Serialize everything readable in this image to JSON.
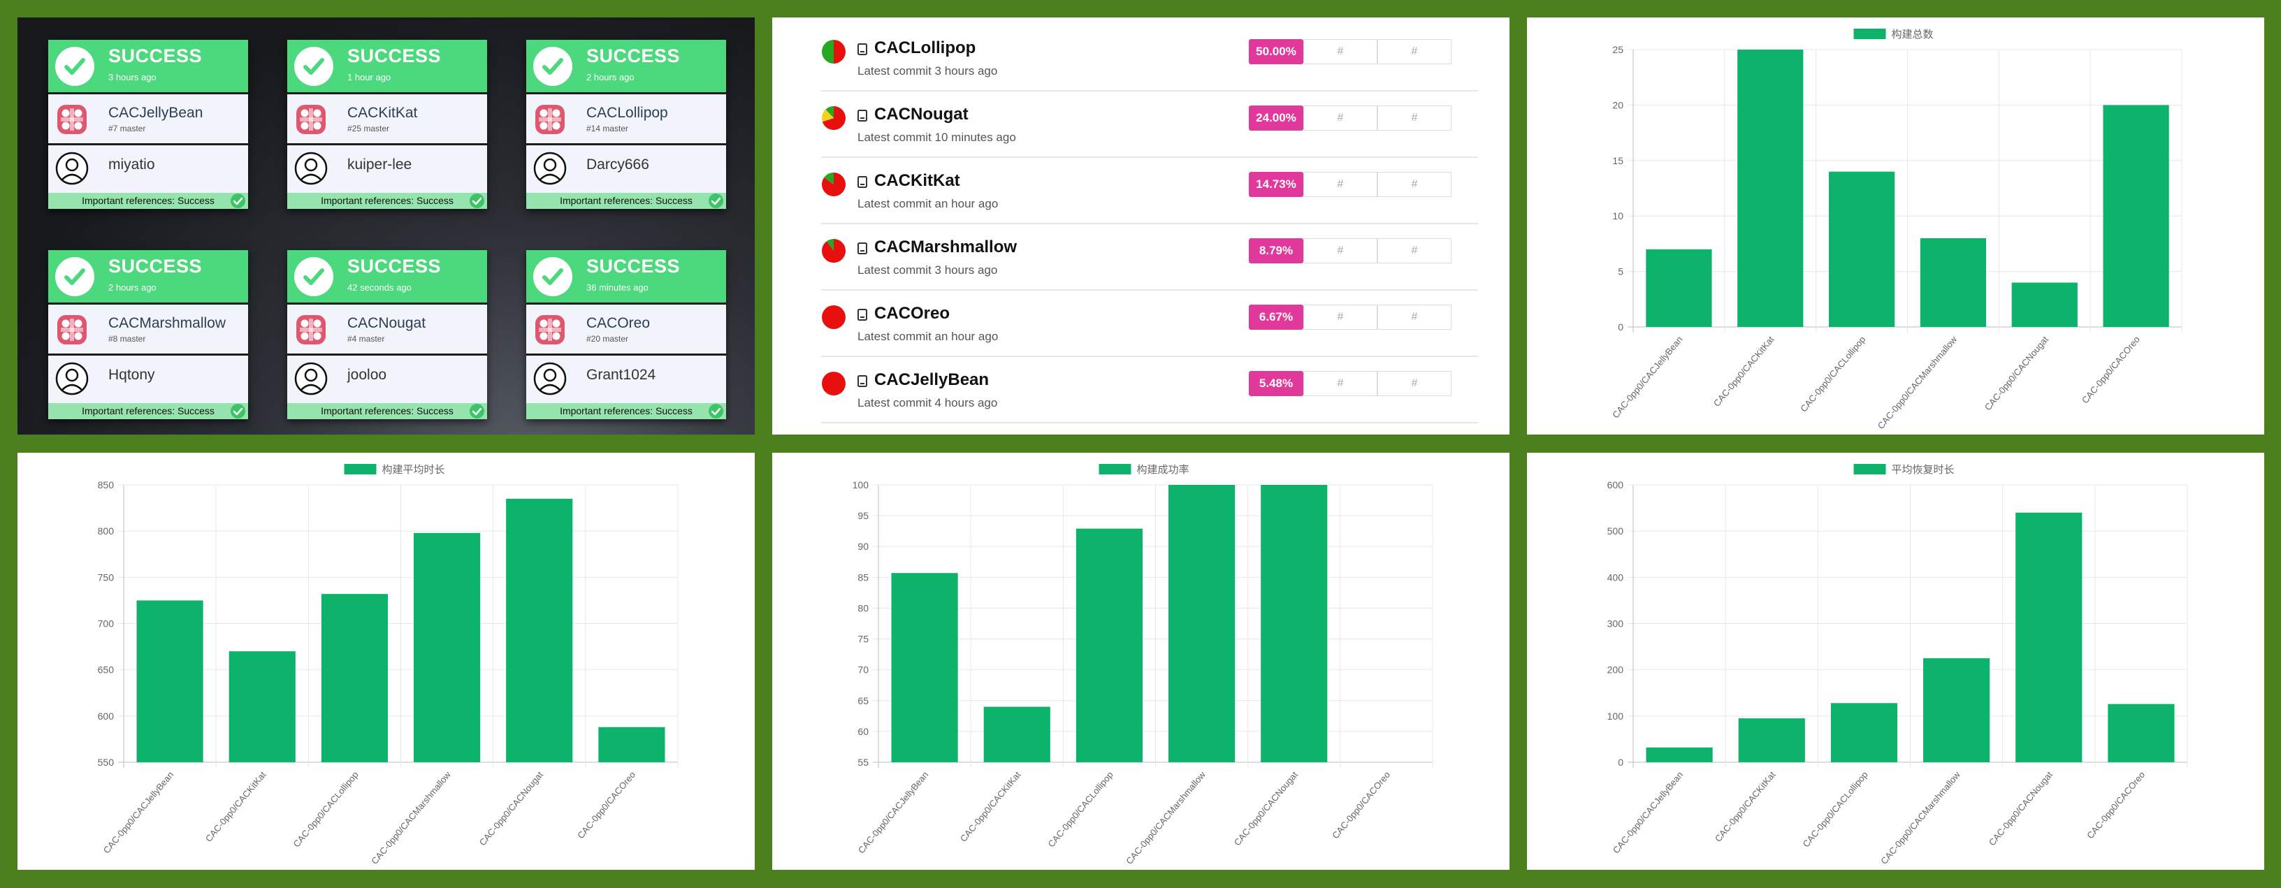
{
  "build_cards": [
    {
      "status": "SUCCESS",
      "time": "3 hours ago",
      "project": "CACJellyBean",
      "branch": "#7 master",
      "user": "miyatio",
      "footer": "Important references: Success"
    },
    {
      "status": "SUCCESS",
      "time": "1 hour ago",
      "project": "CACKitKat",
      "branch": "#25 master",
      "user": "kuiper-lee",
      "footer": "Important references: Success"
    },
    {
      "status": "SUCCESS",
      "time": "2 hours ago",
      "project": "CACLollipop",
      "branch": "#14 master",
      "user": "Darcy666",
      "footer": "Important references: Success"
    },
    {
      "status": "SUCCESS",
      "time": "2 hours ago",
      "project": "CACMarshmallow",
      "branch": "#8 master",
      "user": "Hqtony",
      "footer": "Important references: Success"
    },
    {
      "status": "SUCCESS",
      "time": "42 seconds ago",
      "project": "CACNougat",
      "branch": "#4 master",
      "user": "jooloo",
      "footer": "Important references: Success"
    },
    {
      "status": "SUCCESS",
      "time": "36 minutes ago",
      "project": "CACOreo",
      "branch": "#20 master",
      "user": "Grant1024",
      "footer": "Important references: Success"
    }
  ],
  "repos": [
    {
      "name": "CACLollipop",
      "commit": "Latest commit 3 hours ago",
      "percent": "50.00%",
      "share": 0.5,
      "hash1": "#",
      "hash2": "#"
    },
    {
      "name": "CACNougat",
      "commit": "Latest commit 10 minutes ago",
      "percent": "24.00%",
      "share": 0.24,
      "hash1": "#",
      "hash2": "#"
    },
    {
      "name": "CACKitKat",
      "commit": "Latest commit an hour ago",
      "percent": "14.73%",
      "share": 0.1473,
      "hash1": "#",
      "hash2": "#"
    },
    {
      "name": "CACMarshmallow",
      "commit": "Latest commit 3 hours ago",
      "percent": "8.79%",
      "share": 0.0879,
      "hash1": "#",
      "hash2": "#"
    },
    {
      "name": "CACOreo",
      "commit": "Latest commit an hour ago",
      "percent": "6.67%",
      "share": 0.0667,
      "hash1": "#",
      "hash2": "#"
    },
    {
      "name": "CACJellyBean",
      "commit": "Latest commit 4 hours ago",
      "percent": "5.48%",
      "share": 0.0548,
      "hash1": "#",
      "hash2": "#"
    }
  ],
  "colors": {
    "success": "#4cd87c",
    "bar": "#0db36b",
    "badge": "#e0389b",
    "pie_red": "#e8100e",
    "pie_green": "#27a822",
    "pie_yellow": "#f2d21c"
  },
  "chart_data": [
    {
      "type": "bar",
      "legend": "构建总数",
      "legend_position": "top",
      "grid": true,
      "categories": [
        "CAC-0pp0/CACJellyBean",
        "CAC-0pp0/CACKitKat",
        "CAC-0pp0/CACLollipop",
        "CAC-0pp0/CACMarshmallow",
        "CAC-0pp0/CACNougat",
        "CAC-0pp0/CACOreo"
      ],
      "values": [
        7,
        25,
        14,
        8,
        4,
        20
      ],
      "ylim": [
        0,
        25
      ],
      "yticks": [
        0,
        5,
        10,
        15,
        20,
        25
      ]
    },
    {
      "type": "bar",
      "legend": "构建平均时长",
      "legend_position": "top",
      "grid": true,
      "categories": [
        "CAC-0pp0/CACJellyBean",
        "CAC-0pp0/CACKitKat",
        "CAC-0pp0/CACLollipop",
        "CAC-0pp0/CACMarshmallow",
        "CAC-0pp0/CACNougat",
        "CAC-0pp0/CACOreo"
      ],
      "values": [
        725,
        670,
        732,
        798,
        835,
        588
      ],
      "ylim": [
        550,
        850
      ],
      "yticks": [
        550,
        600,
        650,
        700,
        750,
        800,
        850
      ]
    },
    {
      "type": "bar",
      "legend": "构建成功率",
      "legend_position": "top",
      "grid": true,
      "categories": [
        "CAC-0pp0/CACJellyBean",
        "CAC-0pp0/CACKitKat",
        "CAC-0pp0/CACLollipop",
        "CAC-0pp0/CACMarshmallow",
        "CAC-0pp0/CACNougat",
        "CAC-0pp0/CACOreo"
      ],
      "values": [
        85.7,
        64,
        92.9,
        100,
        100,
        null
      ],
      "ylim": [
        55,
        100
      ],
      "yticks": [
        55,
        60,
        65,
        70,
        75,
        80,
        85,
        90,
        95,
        100
      ]
    },
    {
      "type": "bar",
      "legend": "平均恢复时长",
      "legend_position": "top",
      "grid": true,
      "categories": [
        "CAC-0pp0/CACJellyBean",
        "CAC-0pp0/CACKitKat",
        "CAC-0pp0/CACLollipop",
        "CAC-0pp0/CACMarshmallow",
        "CAC-0pp0/CACNougat",
        "CAC-0pp0/CACOreo"
      ],
      "values": [
        32,
        95,
        128,
        225,
        540,
        126
      ],
      "ylim": [
        0,
        600
      ],
      "yticks": [
        0,
        100,
        200,
        300,
        400,
        500,
        600
      ]
    }
  ]
}
